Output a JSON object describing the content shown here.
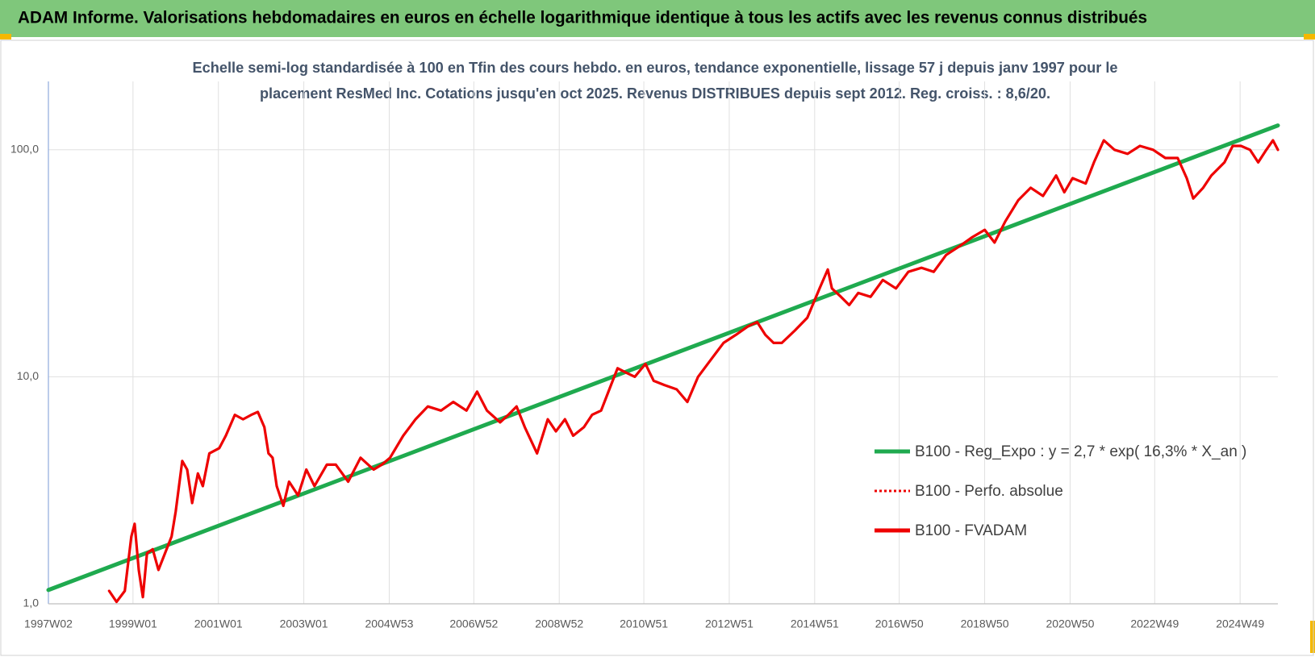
{
  "chart_data": {
    "type": "line",
    "title": "ADAM Informe. Valorisations hebdomadaires en euros en échelle logarithmique identique à tous les actifs avec les revenus connus distribués",
    "subtitle": [
      "Echelle semi-log standardisée à 100 en Tfin des cours hebdo. en euros, tendance exponentielle, lissage 57 j depuis janv 1997 pour le",
      "placement ResMed Inc. Cotations jusqu'en oct 2025. Revenus DISTRIBUES depuis sept 2012. Reg. croiss. : 8,6/20."
    ],
    "y_scale": "log",
    "grid": true,
    "legend": "right",
    "xlim": [
      "1997W02",
      "2025W43"
    ],
    "xticks": [
      "1997W02",
      "1999W01",
      "2001W01",
      "2003W01",
      "2004W53",
      "2006W52",
      "2008W52",
      "2010W51",
      "2012W51",
      "2014W51",
      "2016W50",
      "2018W50",
      "2020W50",
      "2022W49",
      "2024W49"
    ],
    "ylim": [
      1,
      200
    ],
    "yticks": [
      {
        "value": 1,
        "label": "1,0"
      },
      {
        "value": 10,
        "label": "10,0"
      },
      {
        "value": 100,
        "label": "100,0"
      }
    ],
    "series": [
      {
        "name": "B100 - Reg_Expo : y = 2,7 * exp( 16,3% *  X_an )",
        "color": "#1faa4f",
        "style": "solid",
        "x": [
          "1997W02",
          "2025W43"
        ],
        "values": [
          1.15,
          128
        ]
      },
      {
        "name": "B100 - Perfo. absolue",
        "color": "#ee0000",
        "style": "dotted",
        "x": [],
        "values": []
      },
      {
        "name": "B100 - FVADAM",
        "color": "#ee0000",
        "style": "solid",
        "x": [
          "1998W24",
          "1998W33",
          "1998W43",
          "1998W51",
          "1999W03",
          "1999W08",
          "1999W13",
          "1999W18",
          "1999W25",
          "1999W32",
          "1999W38",
          "1999W48",
          "2000W01",
          "2000W09",
          "2000W15",
          "2000W21",
          "2000W28",
          "2000W34",
          "2000W42",
          "2001W02",
          "2001W10",
          "2001W21",
          "2001W31",
          "2001W41",
          "2001W49",
          "2002W05",
          "2002W10",
          "2002W15",
          "2002W20",
          "2002W28",
          "2002W35",
          "2002W46",
          "2003W04",
          "2003W14",
          "2003W29",
          "2003W40",
          "2004W03",
          "2004W18",
          "2004W34",
          "2004W44",
          "2005W02",
          "2005W18",
          "2005W33",
          "2005W48",
          "2006W12",
          "2006W27",
          "2006W43",
          "2007W04",
          "2007W16",
          "2007W32",
          "2007W42",
          "2007W52",
          "2008W10",
          "2008W25",
          "2008W38",
          "2008W48",
          "2009W07",
          "2009W17",
          "2009W30",
          "2009W40",
          "2009W51",
          "2010W09",
          "2010W19",
          "2010W30",
          "2010W40",
          "2011W01",
          "2011W11",
          "2011W24",
          "2011W39",
          "2011W52",
          "2012W13",
          "2012W28",
          "2012W44",
          "2013W07",
          "2013W22",
          "2013W33",
          "2013W43",
          "2014W01",
          "2014W11",
          "2014W27",
          "2014W42",
          "2015W05",
          "2015W15",
          "2015W20",
          "2015W31",
          "2015W41",
          "2015W52",
          "2016W15",
          "2016W30",
          "2016W46",
          "2017W09",
          "2017W25",
          "2017W40",
          "2018W03",
          "2018W19",
          "2018W34",
          "2018W50",
          "2019W10",
          "2019W23",
          "2019W39",
          "2020W02",
          "2020W17",
          "2020W33",
          "2020W43",
          "2021W01",
          "2021W17",
          "2021W27",
          "2021W39",
          "2021W52",
          "2022W16",
          "2022W31",
          "2022W47",
          "2023W10",
          "2023W25",
          "2023W36",
          "2023W44",
          "2024W04",
          "2024W14",
          "2024W30",
          "2024W40",
          "2024W50",
          "2025W09",
          "2025W19",
          "2025W29",
          "2025W37",
          "2025W43"
        ],
        "values": [
          1.14,
          1.02,
          1.14,
          1.98,
          2.25,
          1.41,
          1.07,
          1.67,
          1.74,
          1.41,
          1.6,
          1.98,
          2.55,
          4.26,
          3.9,
          2.78,
          3.75,
          3.3,
          4.6,
          4.85,
          5.5,
          6.8,
          6.5,
          6.8,
          7.0,
          6.0,
          4.6,
          4.4,
          3.3,
          2.7,
          3.45,
          3.0,
          3.9,
          3.3,
          4.1,
          4.1,
          3.45,
          4.4,
          3.9,
          4.1,
          4.4,
          5.5,
          6.5,
          7.4,
          7.1,
          7.75,
          7.1,
          8.6,
          7.1,
          6.3,
          6.8,
          7.4,
          6.0,
          4.6,
          6.5,
          5.75,
          6.5,
          5.5,
          6.0,
          6.8,
          7.1,
          8.8,
          10.9,
          10.4,
          10.0,
          11.4,
          9.6,
          9.2,
          8.8,
          7.75,
          10.0,
          11.8,
          14.1,
          15.3,
          16.7,
          17.4,
          15.3,
          14.1,
          14.1,
          16.0,
          18.2,
          24.5,
          29.7,
          24.5,
          22.5,
          20.7,
          23.4,
          22.5,
          26.7,
          24.5,
          29,
          30.2,
          29,
          34.4,
          37.5,
          41,
          44.4,
          39,
          48.3,
          60,
          68,
          62.6,
          77,
          65,
          75,
          71,
          88,
          110,
          100,
          96,
          104,
          100,
          92,
          92,
          75,
          61,
          68,
          77,
          88,
          104,
          104,
          100,
          88,
          100,
          110,
          100
        ]
      }
    ]
  }
}
